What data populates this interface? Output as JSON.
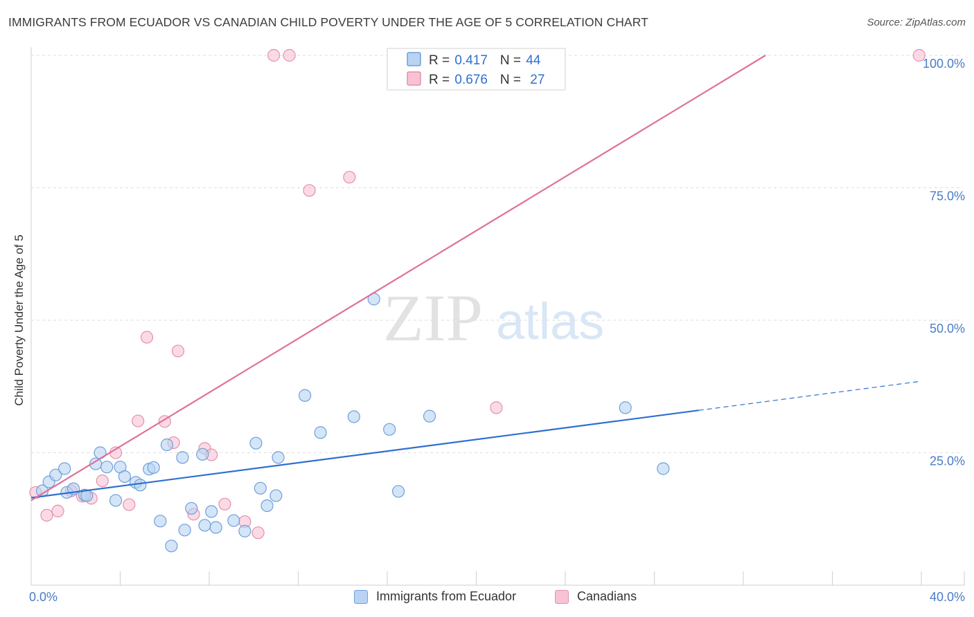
{
  "header": {
    "title": "IMMIGRANTS FROM ECUADOR VS CANADIAN CHILD POVERTY UNDER THE AGE OF 5 CORRELATION CHART",
    "source": "Source: ZipAtlas.com"
  },
  "watermark": {
    "zip": "ZIP",
    "atlas": "atlas"
  },
  "colors": {
    "blue_fill": "#b8d3f3",
    "blue_stroke": "#6e9fd8",
    "blue_line": "#2e6fcf",
    "pink_fill": "#f7c3d3",
    "pink_stroke": "#e58fab",
    "pink_line": "#e0709a",
    "tick_label": "#4a7cc7",
    "grid": "#dddddd"
  },
  "legend_box": {
    "rows": [
      {
        "r_label": "R = ",
        "r_value": "0.417",
        "n_label": "N = ",
        "n_value": "44"
      },
      {
        "r_label": "R = ",
        "r_value": "0.676",
        "n_label": "N = ",
        "n_value": "27"
      }
    ]
  },
  "legend_bottom": [
    {
      "label": "Immigrants from Ecuador"
    },
    {
      "label": "Canadians"
    }
  ],
  "chart_data": {
    "type": "scatter",
    "title": "IMMIGRANTS FROM ECUADOR VS CANADIAN CHILD POVERTY UNDER THE AGE OF 5 CORRELATION CHART",
    "xlabel": "",
    "ylabel": "Child Poverty Under the Age of 5",
    "xlim": [
      0,
      40
    ],
    "ylim": [
      0,
      100
    ],
    "x_tick_labels": [
      {
        "value": 0,
        "label": "0.0%"
      },
      {
        "value": 40,
        "label": "40.0%"
      }
    ],
    "y_tick_labels": [
      {
        "value": 25,
        "label": "25.0%"
      },
      {
        "value": 50,
        "label": "50.0%"
      },
      {
        "value": 75,
        "label": "75.0%"
      },
      {
        "value": 100,
        "label": "100.0%"
      }
    ],
    "grid": true,
    "legend_position": "top-center",
    "series": [
      {
        "name": "Immigrants from Ecuador",
        "R": 0.417,
        "N": 44,
        "points": [
          [
            0.5,
            17.8
          ],
          [
            0.8,
            19.5
          ],
          [
            1.1,
            20.8
          ],
          [
            1.5,
            22.0
          ],
          [
            1.6,
            17.5
          ],
          [
            1.9,
            18.2
          ],
          [
            2.4,
            17.0
          ],
          [
            2.5,
            16.9
          ],
          [
            2.9,
            22.9
          ],
          [
            3.1,
            25.0
          ],
          [
            3.4,
            22.3
          ],
          [
            3.8,
            16.0
          ],
          [
            4.0,
            22.3
          ],
          [
            4.2,
            20.5
          ],
          [
            4.7,
            19.4
          ],
          [
            4.9,
            18.9
          ],
          [
            5.3,
            21.9
          ],
          [
            5.5,
            22.2
          ],
          [
            5.8,
            12.1
          ],
          [
            6.1,
            26.5
          ],
          [
            6.3,
            7.4
          ],
          [
            6.8,
            24.1
          ],
          [
            6.9,
            10.4
          ],
          [
            7.2,
            14.5
          ],
          [
            7.7,
            24.7
          ],
          [
            7.8,
            11.3
          ],
          [
            8.1,
            13.9
          ],
          [
            8.3,
            10.9
          ],
          [
            9.1,
            12.2
          ],
          [
            9.6,
            10.2
          ],
          [
            10.1,
            26.8
          ],
          [
            10.3,
            18.3
          ],
          [
            10.6,
            15.0
          ],
          [
            11.1,
            24.1
          ],
          [
            11.0,
            16.9
          ],
          [
            12.3,
            35.8
          ],
          [
            13.0,
            28.8
          ],
          [
            14.5,
            31.8
          ],
          [
            15.4,
            54.0
          ],
          [
            16.1,
            29.4
          ],
          [
            16.5,
            17.7
          ],
          [
            17.9,
            31.9
          ],
          [
            26.7,
            33.5
          ],
          [
            28.4,
            22.0
          ]
        ]
      },
      {
        "name": "Canadians",
        "R": 0.676,
        "N": 27,
        "points": [
          [
            0.2,
            17.5
          ],
          [
            0.7,
            13.2
          ],
          [
            1.2,
            14.0
          ],
          [
            1.8,
            17.8
          ],
          [
            2.3,
            16.8
          ],
          [
            2.7,
            16.4
          ],
          [
            3.2,
            19.7
          ],
          [
            3.8,
            25.0
          ],
          [
            4.4,
            15.2
          ],
          [
            4.8,
            31.0
          ],
          [
            5.2,
            46.8
          ],
          [
            6.0,
            30.9
          ],
          [
            6.4,
            26.9
          ],
          [
            6.6,
            44.2
          ],
          [
            7.3,
            13.4
          ],
          [
            7.8,
            25.8
          ],
          [
            8.1,
            24.6
          ],
          [
            8.7,
            15.3
          ],
          [
            9.6,
            12.0
          ],
          [
            10.2,
            9.9
          ],
          [
            10.9,
            100
          ],
          [
            11.6,
            100
          ],
          [
            12.5,
            74.5
          ],
          [
            14.3,
            77.0
          ],
          [
            20.9,
            33.5
          ],
          [
            21.6,
            100
          ],
          [
            39.9,
            100
          ]
        ]
      }
    ],
    "trendlines": [
      {
        "series": "Immigrants from Ecuador",
        "x0": 0,
        "y0": 16.5,
        "x1": 30,
        "y1": 33.0,
        "dashed_to_x": 40,
        "dashed_to_y": 38.5
      },
      {
        "series": "Canadians",
        "x0": 0,
        "y0": 16.0,
        "x1": 33,
        "y1": 100
      }
    ]
  }
}
